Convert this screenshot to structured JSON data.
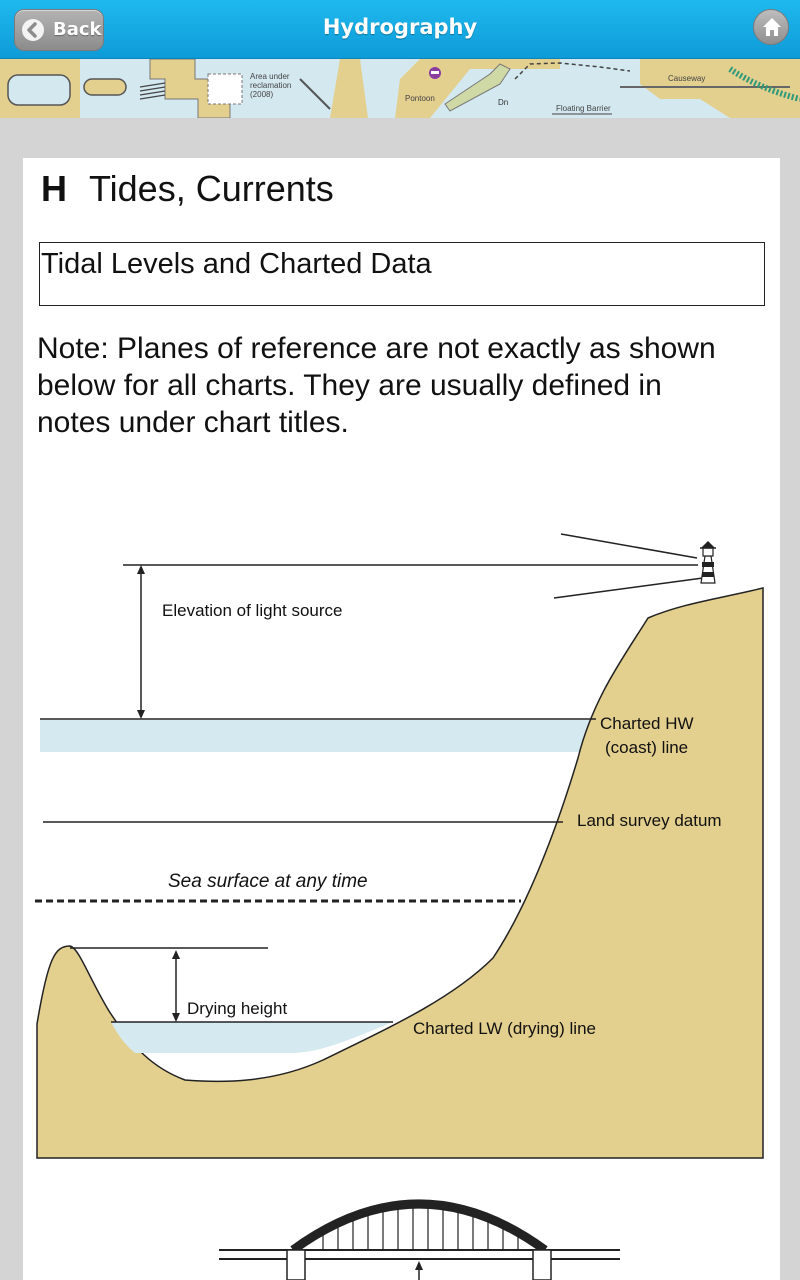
{
  "header": {
    "title": "Hydrography",
    "back_label": "Back",
    "color": "#1aaee6"
  },
  "banner": {
    "labels": {
      "reclamation": [
        "Area under",
        "reclamation",
        "(2008)"
      ],
      "pontoon": "Pontoon",
      "dn": "Dn",
      "floating_barrier": "Floating Barrier",
      "causeway": "Causeway"
    }
  },
  "content": {
    "section_letter": "H",
    "section_title": "Tides, Currents",
    "subheading": "Tidal Levels and Charted Data",
    "note": "Note: Planes of reference are not exactly as shown below for all charts. They are usually defined in notes under chart titles."
  },
  "diagram": {
    "labels": {
      "elevation": "Elevation of light source",
      "charted_hw": [
        "Charted HW",
        "(coast) line"
      ],
      "land_survey": "Land survey datum",
      "sea_surface": "Sea surface at any time",
      "drying_height": "Drying height",
      "charted_lw": "Charted LW (drying) line"
    },
    "colors": {
      "land": "#e3cf8e",
      "water": "#d5e9f0",
      "line": "#222222"
    }
  },
  "icons": {
    "back": "chevron-left-icon",
    "home": "home-icon",
    "lighthouse": "lighthouse-icon",
    "bridge": "bridge-icon"
  }
}
